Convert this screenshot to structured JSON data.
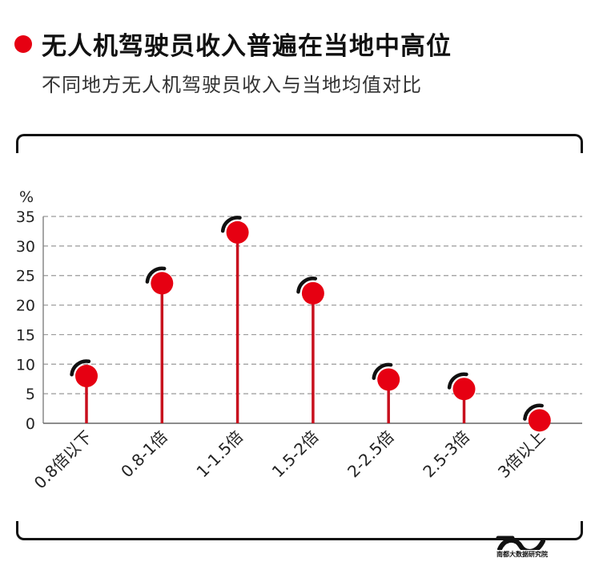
{
  "header": {
    "title": "无人机驾驶员收入普遍在当地中高位",
    "subtitle": "不同地方无人机驾驶员收入与当地均值对比"
  },
  "footer": {
    "logo_text": "南都大数据研究院"
  },
  "colors": {
    "accent": "#e60012",
    "stem": "#c8101e",
    "grid": "#9a9a9a"
  },
  "chart_data": {
    "type": "lollipop",
    "unit_label": "%",
    "categories": [
      "0.8倍以下",
      "0.8-1倍",
      "1-1.5倍",
      "1.5-2倍",
      "2-2.5倍",
      "2.5-3倍",
      "3倍以上"
    ],
    "values": [
      8,
      23.7,
      32.3,
      22,
      7.4,
      5.8,
      0.5
    ],
    "yticks": [
      0,
      5,
      10,
      15,
      20,
      25,
      30,
      35
    ],
    "ylim": [
      0,
      35
    ],
    "grid": true
  }
}
